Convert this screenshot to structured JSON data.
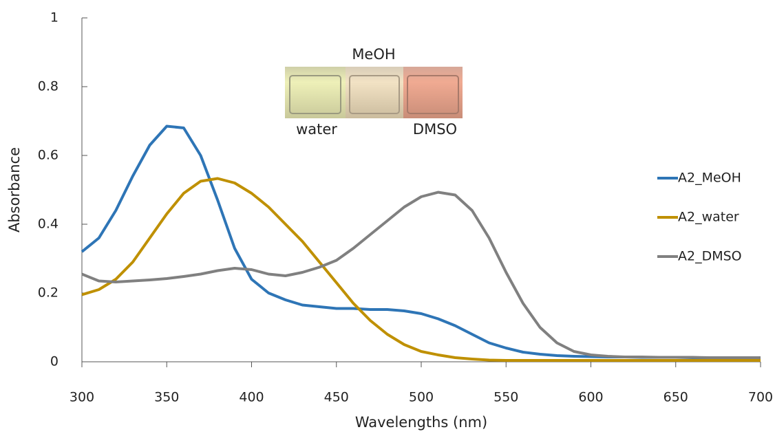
{
  "chart_data": {
    "type": "line",
    "x_label": "Wavelengths (nm)",
    "y_label": "Absorbance",
    "annotations": [
      "MeOH",
      "water",
      "DMSO"
    ],
    "xlim": [
      300,
      700
    ],
    "xticks": [
      300,
      350,
      400,
      450,
      500,
      550,
      600,
      650,
      700
    ],
    "ylim": [
      0,
      1
    ],
    "yticks": [
      0,
      0.2,
      0.4,
      0.6,
      0.8,
      1
    ],
    "legend": "right",
    "x": [
      300,
      310,
      320,
      330,
      340,
      350,
      360,
      370,
      380,
      390,
      400,
      410,
      420,
      430,
      440,
      450,
      460,
      470,
      480,
      490,
      500,
      510,
      520,
      530,
      540,
      550,
      560,
      570,
      580,
      590,
      600,
      610,
      620,
      630,
      640,
      650,
      660,
      670,
      680,
      690,
      700
    ],
    "series": [
      {
        "name": "A2_MeOH",
        "color": "#2e75b6",
        "values": [
          0.32,
          0.36,
          0.44,
          0.54,
          0.63,
          0.685,
          0.68,
          0.6,
          0.47,
          0.33,
          0.24,
          0.2,
          0.18,
          0.165,
          0.16,
          0.155,
          0.155,
          0.152,
          0.152,
          0.148,
          0.14,
          0.125,
          0.105,
          0.08,
          0.055,
          0.04,
          0.028,
          0.022,
          0.018,
          0.016,
          0.015,
          0.014,
          0.014,
          0.013,
          0.013,
          0.013,
          0.012,
          0.012,
          0.012,
          0.012,
          0.012
        ]
      },
      {
        "name": "A2_water",
        "color": "#bf9000",
        "values": [
          0.195,
          0.21,
          0.24,
          0.29,
          0.36,
          0.43,
          0.49,
          0.525,
          0.533,
          0.52,
          0.49,
          0.45,
          0.4,
          0.35,
          0.29,
          0.23,
          0.17,
          0.12,
          0.08,
          0.05,
          0.03,
          0.02,
          0.012,
          0.008,
          0.005,
          0.004,
          0.004,
          0.004,
          0.004,
          0.004,
          0.004,
          0.004,
          0.004,
          0.004,
          0.004,
          0.004,
          0.004,
          0.004,
          0.004,
          0.004,
          0.004
        ]
      },
      {
        "name": "A2_DMSO",
        "color": "#808080",
        "values": [
          0.255,
          0.235,
          0.232,
          0.235,
          0.238,
          0.242,
          0.248,
          0.255,
          0.265,
          0.272,
          0.268,
          0.255,
          0.25,
          0.26,
          0.275,
          0.295,
          0.33,
          0.37,
          0.41,
          0.45,
          0.48,
          0.493,
          0.485,
          0.44,
          0.36,
          0.26,
          0.17,
          0.1,
          0.055,
          0.03,
          0.02,
          0.016,
          0.014,
          0.014,
          0.013,
          0.013,
          0.013,
          0.012,
          0.012,
          0.012,
          0.012
        ]
      }
    ]
  }
}
